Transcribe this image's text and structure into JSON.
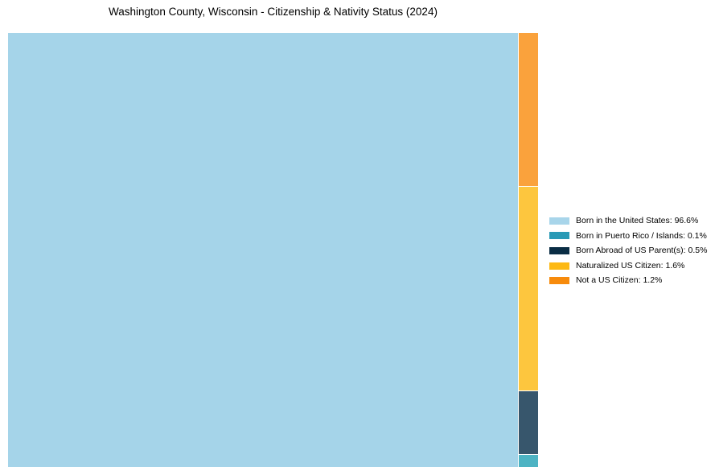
{
  "title": "Washington County, Wisconsin - Citizenship & Nativity Status (2024)",
  "background_color": "#ffffff",
  "title_color": "#000000",
  "legend_text_color": "#000000",
  "chart_data": {
    "type": "treemap",
    "title": "Washington County, Wisconsin - Citizenship & Nativity Status (2024)",
    "unit": "%",
    "items": [
      {
        "label": "Born in the United States",
        "value": 96.6,
        "percent_label": "96.6%",
        "chart_color": "#a5d4e9",
        "legend_color": "#a8d5ea"
      },
      {
        "label": "Born in Puerto Rico / Islands",
        "value": 0.1,
        "percent_label": "0.1%",
        "chart_color": "#4db3c3",
        "legend_color": "#2a9ab6"
      },
      {
        "label": "Born Abroad of US Parent(s)",
        "value": 0.5,
        "percent_label": "0.5%",
        "chart_color": "#37566c",
        "legend_color": "#0a2d44"
      },
      {
        "label": "Naturalized US Citizen",
        "value": 1.6,
        "percent_label": "1.6%",
        "chart_color": "#fdc63e",
        "legend_color": "#fdb913"
      },
      {
        "label": "Not a US Citizen",
        "value": 1.2,
        "percent_label": "1.2%",
        "chart_color": "#faa23c",
        "legend_color": "#f78b0c"
      }
    ],
    "layout": {
      "orientation": "largest-cell-left-minor-column-right",
      "column_order_top_to_bottom": [
        "Not a US Citizen",
        "Naturalized US Citizen",
        "Born Abroad of US Parent(s)",
        "Born in Puerto Rico / Islands"
      ],
      "legend_position": "right-center",
      "grid": "off",
      "axes": "none"
    }
  }
}
